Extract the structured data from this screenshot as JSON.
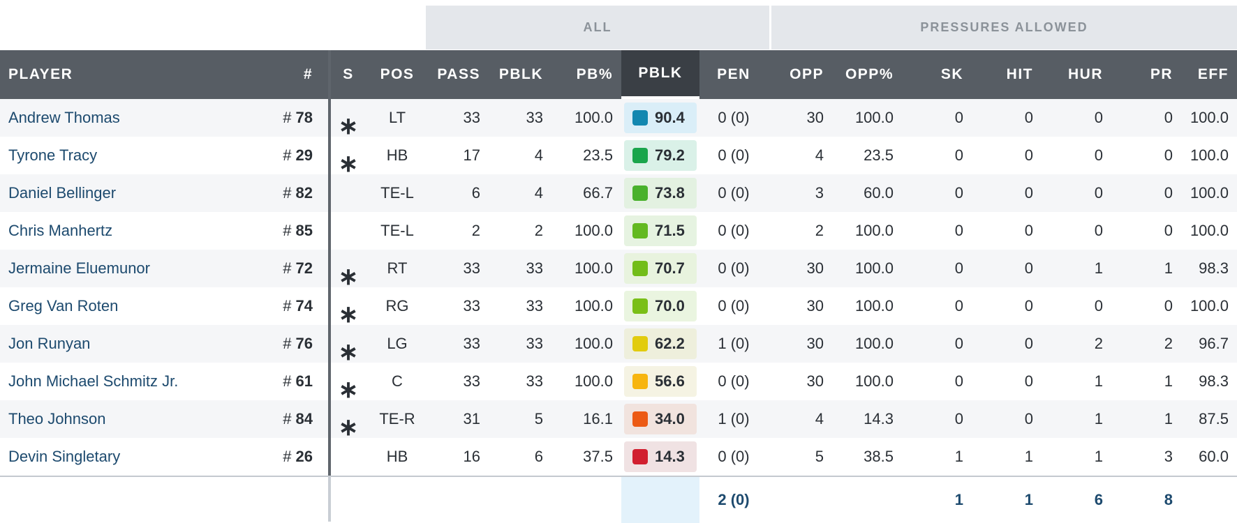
{
  "group_headers": {
    "all": "ALL",
    "pressures": "PRESSURES ALLOWED"
  },
  "columns": {
    "player": "PLAYER",
    "jersey": "#",
    "starter": "S",
    "pos": "POS",
    "pass": "PASS",
    "pblk": "PBLK",
    "pb_pct": "PB%",
    "grade": "PBLK",
    "pen": "PEN",
    "opp": "OPP",
    "opp_pct": "OPP%",
    "sk": "SK",
    "hit": "HIT",
    "hur": "HUR",
    "pr": "PR",
    "eff": "EFF"
  },
  "rows": [
    {
      "name": "Andrew Thomas",
      "hash": "#",
      "num": "78",
      "starter": "∗",
      "pos": "LT",
      "pass": "33",
      "pblk": "33",
      "pbpct": "100.0",
      "grade": "90.4",
      "grade_color": "#1287b0",
      "grade_bg": "#daeef8",
      "pen": "0 (0)",
      "opp": "30",
      "opppct": "100.0",
      "sk": "0",
      "hit": "0",
      "hur": "0",
      "pr": "0",
      "eff": "100.0"
    },
    {
      "name": "Tyrone Tracy",
      "hash": "#",
      "num": "29",
      "starter": "∗",
      "pos": "HB",
      "pass": "17",
      "pblk": "4",
      "pbpct": "23.5",
      "grade": "79.2",
      "grade_color": "#1aa54c",
      "grade_bg": "#daf1e8",
      "pen": "0 (0)",
      "opp": "4",
      "opppct": "23.5",
      "sk": "0",
      "hit": "0",
      "hur": "0",
      "pr": "0",
      "eff": "100.0"
    },
    {
      "name": "Daniel Bellinger",
      "hash": "#",
      "num": "82",
      "starter": "",
      "pos": "TE-L",
      "pass": "6",
      "pblk": "4",
      "pbpct": "66.7",
      "grade": "73.8",
      "grade_color": "#49b12c",
      "grade_bg": "#e3f1e1",
      "pen": "0 (0)",
      "opp": "3",
      "opppct": "60.0",
      "sk": "0",
      "hit": "0",
      "hur": "0",
      "pr": "0",
      "eff": "100.0"
    },
    {
      "name": "Chris Manhertz",
      "hash": "#",
      "num": "85",
      "starter": "",
      "pos": "TE-L",
      "pass": "2",
      "pblk": "2",
      "pbpct": "100.0",
      "grade": "71.5",
      "grade_color": "#63b921",
      "grade_bg": "#e6f3e1",
      "pen": "0 (0)",
      "opp": "2",
      "opppct": "100.0",
      "sk": "0",
      "hit": "0",
      "hur": "0",
      "pr": "0",
      "eff": "100.0"
    },
    {
      "name": "Jermaine Eluemunor",
      "hash": "#",
      "num": "72",
      "starter": "∗",
      "pos": "RT",
      "pass": "33",
      "pblk": "33",
      "pbpct": "100.0",
      "grade": "70.7",
      "grade_color": "#72bd19",
      "grade_bg": "#e8f3de",
      "pen": "0 (0)",
      "opp": "30",
      "opppct": "100.0",
      "sk": "0",
      "hit": "0",
      "hur": "1",
      "pr": "1",
      "eff": "98.3"
    },
    {
      "name": "Greg Van Roten",
      "hash": "#",
      "num": "74",
      "starter": "∗",
      "pos": "RG",
      "pass": "33",
      "pblk": "33",
      "pbpct": "100.0",
      "grade": "70.0",
      "grade_color": "#7abf18",
      "grade_bg": "#eaf5e0",
      "pen": "0 (0)",
      "opp": "30",
      "opppct": "100.0",
      "sk": "0",
      "hit": "0",
      "hur": "0",
      "pr": "0",
      "eff": "100.0"
    },
    {
      "name": "Jon Runyan",
      "hash": "#",
      "num": "76",
      "starter": "∗",
      "pos": "LG",
      "pass": "33",
      "pblk": "33",
      "pbpct": "100.0",
      "grade": "62.2",
      "grade_color": "#e2cc0e",
      "grade_bg": "#eeefdc",
      "pen": "1 (0)",
      "opp": "30",
      "opppct": "100.0",
      "sk": "0",
      "hit": "0",
      "hur": "2",
      "pr": "2",
      "eff": "96.7"
    },
    {
      "name": "John Michael Schmitz Jr.",
      "hash": "#",
      "num": "61",
      "starter": "∗",
      "pos": "C",
      "pass": "33",
      "pblk": "33",
      "pbpct": "100.0",
      "grade": "56.6",
      "grade_color": "#f7b510",
      "grade_bg": "#f5f3e3",
      "pen": "0 (0)",
      "opp": "30",
      "opppct": "100.0",
      "sk": "0",
      "hit": "0",
      "hur": "1",
      "pr": "1",
      "eff": "98.3"
    },
    {
      "name": "Theo Johnson",
      "hash": "#",
      "num": "84",
      "starter": "∗",
      "pos": "TE-R",
      "pass": "31",
      "pblk": "5",
      "pbpct": "16.1",
      "grade": "34.0",
      "grade_color": "#ec5a14",
      "grade_bg": "#f1e3de",
      "pen": "1 (0)",
      "opp": "4",
      "opppct": "14.3",
      "sk": "0",
      "hit": "0",
      "hur": "1",
      "pr": "1",
      "eff": "87.5"
    },
    {
      "name": "Devin Singletary",
      "hash": "#",
      "num": "26",
      "starter": "",
      "pos": "HB",
      "pass": "16",
      "pblk": "6",
      "pbpct": "37.5",
      "grade": "14.3",
      "grade_color": "#d11f2f",
      "grade_bg": "#f0e2e3",
      "pen": "0 (0)",
      "opp": "5",
      "opppct": "38.5",
      "sk": "1",
      "hit": "1",
      "hur": "1",
      "pr": "3",
      "eff": "60.0"
    }
  ],
  "totals": {
    "pen": "2 (0)",
    "sk": "1",
    "hit": "1",
    "hur": "6",
    "pr": "8"
  }
}
